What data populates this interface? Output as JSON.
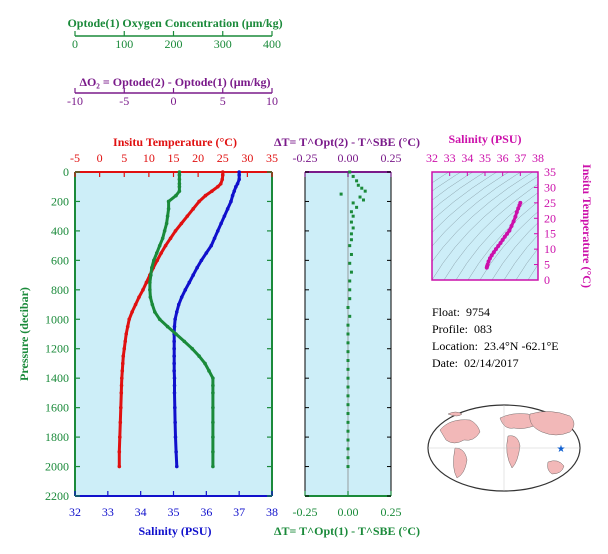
{
  "colors": {
    "oxygen": "#1a8a3a",
    "delta_o2": "#7a1a8a",
    "temperature": "#e01010",
    "salinity": "#1010cc",
    "salinity_top": "#cc10aa",
    "panel_bg": "#cdeef8",
    "map_land": "#f2b8b8",
    "map_ocean": "#ffffff",
    "float_marker": "#1060d0"
  },
  "top_axes": {
    "oxygen": {
      "title": "Optode(1) Oxygen Concentration (μm/kg)",
      "ticks": [
        "0",
        "100",
        "200",
        "300",
        "400"
      ]
    },
    "delta_o2": {
      "title": "ΔO₂ = Optode(2) - Optode(1)   (μm/kg)",
      "ticks": [
        "-10",
        "-5",
        "0",
        "5",
        "10"
      ]
    }
  },
  "info": {
    "float_label": "Float:",
    "float_value": "9754",
    "profile_label": "Profile:",
    "profile_value": "083",
    "location_label": "Location:",
    "location_value": "23.4°N  -62.1°E",
    "date_label": "Date:",
    "date_value": "02/14/2017"
  },
  "chart_data": [
    {
      "type": "line",
      "panel": "main-profile",
      "title": "Insitu Temperature (°C)",
      "xlabel_bottom": "Salinity (PSU)",
      "ylabel": "Pressure (decibar)",
      "ylim": [
        2200,
        0
      ],
      "yticks": [
        "0",
        "200",
        "400",
        "600",
        "800",
        "1000",
        "1200",
        "1400",
        "1600",
        "1800",
        "2000",
        "2200"
      ],
      "temperature_axis": {
        "range": [
          -5,
          35
        ],
        "ticks": [
          "-5",
          "0",
          "5",
          "10",
          "15",
          "20",
          "25",
          "30",
          "35"
        ]
      },
      "salinity_axis": {
        "range": [
          32,
          38
        ],
        "ticks": [
          "32",
          "33",
          "34",
          "35",
          "36",
          "37",
          "38"
        ]
      },
      "oxygen_axis": {
        "range": [
          0,
          400
        ]
      },
      "pressure": [
        0,
        20,
        50,
        80,
        100,
        130,
        160,
        200,
        250,
        300,
        350,
        400,
        450,
        500,
        550,
        600,
        650,
        700,
        750,
        800,
        850,
        900,
        950,
        1000,
        1050,
        1100,
        1150,
        1200,
        1250,
        1300,
        1350,
        1400,
        1450,
        1500,
        1600,
        1700,
        1800,
        1900,
        2000
      ],
      "series": [
        {
          "name": "Insitu Temperature",
          "color_key": "temperature",
          "values": [
            25.0,
            25.0,
            24.9,
            24.6,
            24.0,
            22.8,
            21.5,
            20.2,
            19.0,
            17.8,
            16.6,
            15.4,
            14.4,
            13.4,
            12.5,
            11.7,
            10.9,
            10.2,
            9.5,
            8.8,
            8.0,
            7.3,
            6.6,
            6.0,
            5.7,
            5.4,
            5.2,
            5.0,
            4.8,
            4.7,
            4.6,
            4.5,
            4.45,
            4.4,
            4.3,
            4.2,
            4.1,
            4.0,
            4.0
          ]
        },
        {
          "name": "Salinity",
          "color_key": "salinity",
          "values": [
            37.0,
            37.0,
            37.0,
            36.95,
            36.9,
            36.85,
            36.8,
            36.75,
            36.65,
            36.55,
            36.45,
            36.35,
            36.25,
            36.15,
            36.0,
            35.85,
            35.72,
            35.6,
            35.48,
            35.36,
            35.25,
            35.16,
            35.1,
            35.05,
            35.03,
            35.02,
            35.02,
            35.02,
            35.02,
            35.02,
            35.02,
            35.03,
            35.03,
            35.03,
            35.04,
            35.05,
            35.06,
            35.08,
            35.1
          ]
        },
        {
          "name": "Oxygen Concentration",
          "color_key": "oxygen",
          "values": [
            212,
            212,
            212,
            212,
            212,
            212,
            205,
            190,
            190,
            188,
            186,
            182,
            178,
            172,
            166,
            160,
            156,
            154,
            152,
            152,
            153,
            157,
            162,
            172,
            188,
            205,
            222,
            238,
            252,
            264,
            272,
            280,
            280,
            280,
            280,
            280,
            280,
            280,
            280
          ]
        }
      ]
    },
    {
      "type": "scatter",
      "panel": "delta-t",
      "title_top": "ΔT= T^Opt(2) - T^SBE (°C)",
      "title_bottom": "ΔT= T^Opt(1) - T^SBE (°C)",
      "xlim": [
        -0.25,
        0.25
      ],
      "xticks": [
        "-0.25",
        "0.00",
        "0.25"
      ],
      "ylim": [
        2200,
        0
      ],
      "pressure": [
        0,
        30,
        60,
        90,
        110,
        130,
        150,
        170,
        190,
        210,
        240,
        270,
        300,
        340,
        380,
        420,
        460,
        500,
        560,
        620,
        680,
        740,
        800,
        860,
        920,
        980,
        1040,
        1100,
        1160,
        1220,
        1280,
        1340,
        1400,
        1460,
        1520,
        1580,
        1640,
        1700,
        1760,
        1820,
        1880,
        1940,
        2000
      ],
      "series": [
        {
          "name": "ΔT",
          "color_key": "oxygen",
          "values": [
            0.01,
            0.03,
            0.05,
            0.06,
            0.08,
            0.1,
            -0.04,
            0.07,
            0.09,
            0.03,
            0.05,
            0.02,
            0.03,
            0.02,
            0.03,
            0.02,
            0.02,
            0.01,
            0.02,
            0.01,
            0.02,
            0.01,
            0.01,
            0.01,
            0.0,
            0.01,
            0.0,
            0.0,
            0.0,
            0.0,
            0.0,
            0.0,
            0.0,
            0.0,
            0.0,
            0.0,
            0.0,
            0.0,
            0.0,
            0.0,
            0.0,
            0.0,
            0.0
          ]
        }
      ]
    },
    {
      "type": "scatter",
      "panel": "ts-diagram",
      "title": "Salinity (PSU)",
      "ylabel": "Insitu Temperature (°C)",
      "xlim": [
        32,
        38
      ],
      "ylim": [
        0,
        35
      ],
      "xticks": [
        "32",
        "33",
        "34",
        "35",
        "36",
        "37",
        "38"
      ],
      "yticks": [
        "0",
        "5",
        "10",
        "15",
        "20",
        "25",
        "30",
        "35"
      ],
      "x": [
        35.1,
        35.12,
        35.15,
        35.2,
        35.28,
        35.38,
        35.5,
        35.62,
        35.75,
        35.88,
        36.0,
        36.12,
        36.25,
        36.38,
        36.5,
        36.62,
        36.72,
        36.8,
        36.88,
        36.95,
        37.0
      ],
      "series": [
        {
          "name": "T-S",
          "color_key": "salinity_top",
          "values": [
            4.0,
            4.5,
            5.0,
            6.0,
            7.0,
            8.0,
            9.0,
            10.0,
            11.0,
            12.0,
            13.0,
            14.0,
            15.0,
            16.0,
            17.5,
            19.0,
            20.5,
            22.0,
            23.2,
            24.2,
            25.0
          ]
        }
      ]
    }
  ]
}
